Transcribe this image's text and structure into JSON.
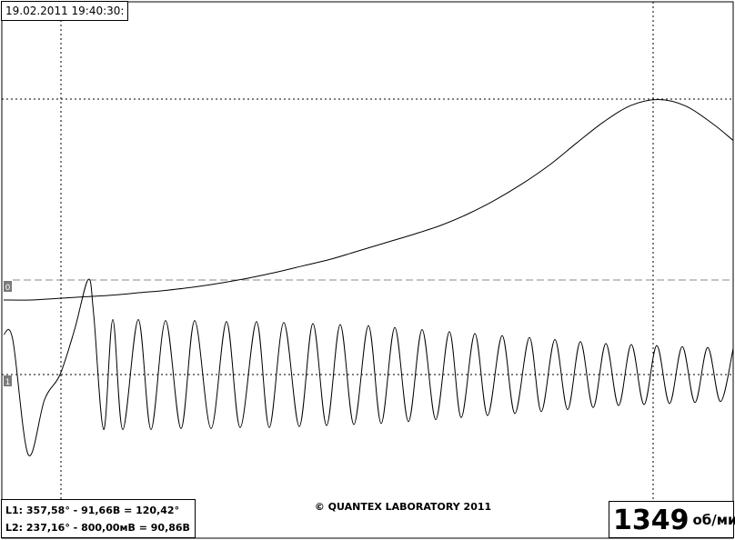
{
  "header": {
    "timestamp": "19.02.2011 19:40:30:"
  },
  "readout": {
    "l1": "L1: 357,58° - 91,66В = 120,42°",
    "l2": "L2: 237,16° - 800,00мВ = 90,86В"
  },
  "footer": {
    "copyright": "© QUANTEX LABORATORY 2011"
  },
  "rpm": {
    "value": "1349",
    "unit": "об/мин"
  },
  "channels": [
    {
      "marker": "0",
      "color": "#000000"
    },
    {
      "marker": "1",
      "color": "#000000"
    }
  ],
  "chart_data": {
    "type": "line",
    "grid": false,
    "series": [
      {
        "x": [
          0,
          30,
          60,
          90,
          120,
          150,
          180,
          210,
          240,
          270,
          300,
          330,
          360,
          390,
          420,
          450,
          480,
          510,
          540,
          570,
          600,
          630,
          660,
          690,
          720,
          750,
          780,
          802
        ],
        "values": [
          0,
          0,
          0.02,
          0.04,
          0.06,
          0.09,
          0.12,
          0.16,
          0.21,
          0.27,
          0.34,
          0.42,
          0.5,
          0.6,
          0.7,
          0.8,
          0.91,
          1.05,
          1.22,
          1.42,
          1.65,
          1.92,
          2.18,
          2.38,
          2.45,
          2.37,
          2.15,
          1.95
        ]
      },
      {
        "x": [
          0,
          10,
          27,
          45,
          62,
          78,
          93,
          99,
          110,
          120,
          131,
          148,
          162,
          178,
          195,
          210,
          228,
          245,
          260,
          278,
          292,
          308,
          325,
          340,
          355,
          370,
          385,
          401,
          415,
          430,
          445,
          460,
          475,
          490,
          503,
          518,
          532,
          548,
          562,
          578,
          591,
          606,
          620,
          634,
          648,
          662,
          676,
          690,
          704,
          718,
          732,
          746,
          760,
          774,
          788,
          802
        ],
        "values": [
          0.4,
          0.35,
          -0.8,
          -0.25,
          0,
          0.45,
          0.95,
          0.6,
          -0.55,
          0.55,
          -0.55,
          0.55,
          -0.55,
          0.54,
          -0.54,
          0.54,
          -0.54,
          0.53,
          -0.53,
          0.53,
          -0.53,
          0.52,
          -0.52,
          0.51,
          -0.51,
          0.5,
          -0.5,
          0.49,
          -0.49,
          0.47,
          -0.47,
          0.45,
          -0.45,
          0.43,
          -0.43,
          0.41,
          -0.41,
          0.39,
          -0.39,
          0.37,
          -0.37,
          0.35,
          -0.35,
          0.33,
          -0.33,
          0.31,
          -0.31,
          0.3,
          -0.3,
          0.29,
          -0.29,
          0.28,
          -0.28,
          0.27,
          -0.27,
          0.26
        ]
      }
    ]
  }
}
